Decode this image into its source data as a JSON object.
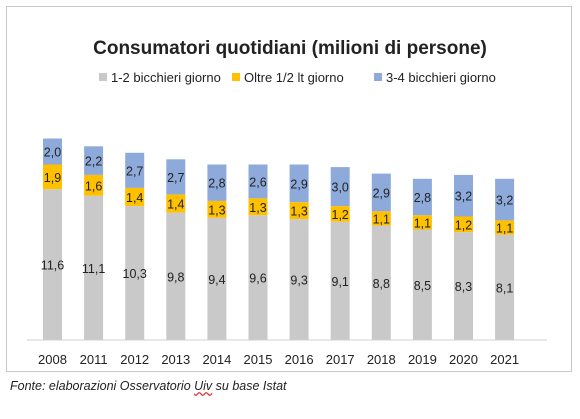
{
  "chart_data": {
    "type": "bar",
    "stacked": true,
    "title": "Consumatori quotidiani (milioni di persone)",
    "categories": [
      "2008",
      "2011",
      "2012",
      "2013",
      "2014",
      "2015",
      "2016",
      "2017",
      "2018",
      "2019",
      "2020",
      "2021"
    ],
    "series": [
      {
        "name": "1-2 bicchieri giorno",
        "color": "#c9c9c9",
        "values": [
          11.6,
          11.1,
          10.3,
          9.8,
          9.4,
          9.6,
          9.3,
          9.1,
          8.8,
          8.5,
          8.3,
          8.1
        ],
        "labels": [
          "11,6",
          "11,1",
          "10,3",
          "9,8",
          "9,4",
          "9,6",
          "9,3",
          "9,1",
          "8,8",
          "8,5",
          "8,3",
          "8,1"
        ]
      },
      {
        "name": "Oltre 1/2 lt giorno",
        "color": "#ffc000",
        "values": [
          1.9,
          1.6,
          1.4,
          1.4,
          1.3,
          1.3,
          1.3,
          1.2,
          1.1,
          1.1,
          1.2,
          1.1
        ],
        "labels": [
          "1,9",
          "1,6",
          "1,4",
          "1,4",
          "1,3",
          "1,3",
          "1,3",
          "1,2",
          "1,1",
          "1,1",
          "1,2",
          "1,1"
        ]
      },
      {
        "name": "3-4 bicchieri giorno",
        "color": "#8eaadb",
        "values": [
          2.0,
          2.2,
          2.7,
          2.7,
          2.8,
          2.6,
          2.9,
          3.0,
          2.9,
          2.8,
          3.2,
          3.2
        ],
        "labels": [
          "2,0",
          "2,2",
          "2,7",
          "2,7",
          "2,8",
          "2,6",
          "2,9",
          "3,0",
          "2,9",
          "2,8",
          "3,2",
          "3,2"
        ]
      }
    ],
    "legend_position": "top",
    "grid": false
  },
  "source": {
    "prefix": "Fonte: elaborazioni Osservatorio ",
    "underlined": "Uiv",
    "suffix": " su base Istat"
  }
}
